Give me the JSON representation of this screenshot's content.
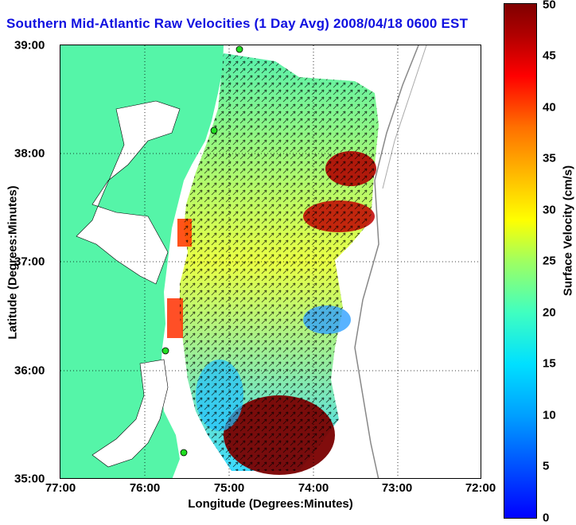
{
  "title": "Southern Mid-Atlantic Raw Velocities (1 Day Avg) 2008/04/18 0600 EST",
  "axes": {
    "xlabel": "Longitude (Degrees:Minutes)",
    "ylabel": "Latitude (Degrees:Minutes)",
    "x_ticks": [
      "77:00",
      "76:00",
      "75:00",
      "74:00",
      "73:00",
      "72:00"
    ],
    "y_ticks": [
      "39:00",
      "38:00",
      "37:00",
      "36:00",
      "35:00"
    ]
  },
  "colorbar": {
    "label": "Surface Velocity (cm/s)",
    "ticks": [
      "50",
      "45",
      "40",
      "35",
      "30",
      "25",
      "20",
      "15",
      "10",
      "5",
      "0"
    ],
    "range": [
      0,
      50
    ]
  },
  "colors": {
    "land": "#55f5a8",
    "title": "#1010e0",
    "gridline": "#000000"
  },
  "chart_data": {
    "type": "heatmap",
    "title": "Southern Mid-Atlantic Raw Velocities (1 Day Avg) 2008/04/18 0600 EST",
    "xlabel": "Longitude (Degrees:Minutes)",
    "ylabel": "Latitude (Degrees:Minutes)",
    "xlim": [
      -77,
      -72
    ],
    "ylim": [
      35,
      39
    ],
    "value_range": [
      0,
      50
    ],
    "units": "cm/s"
  }
}
